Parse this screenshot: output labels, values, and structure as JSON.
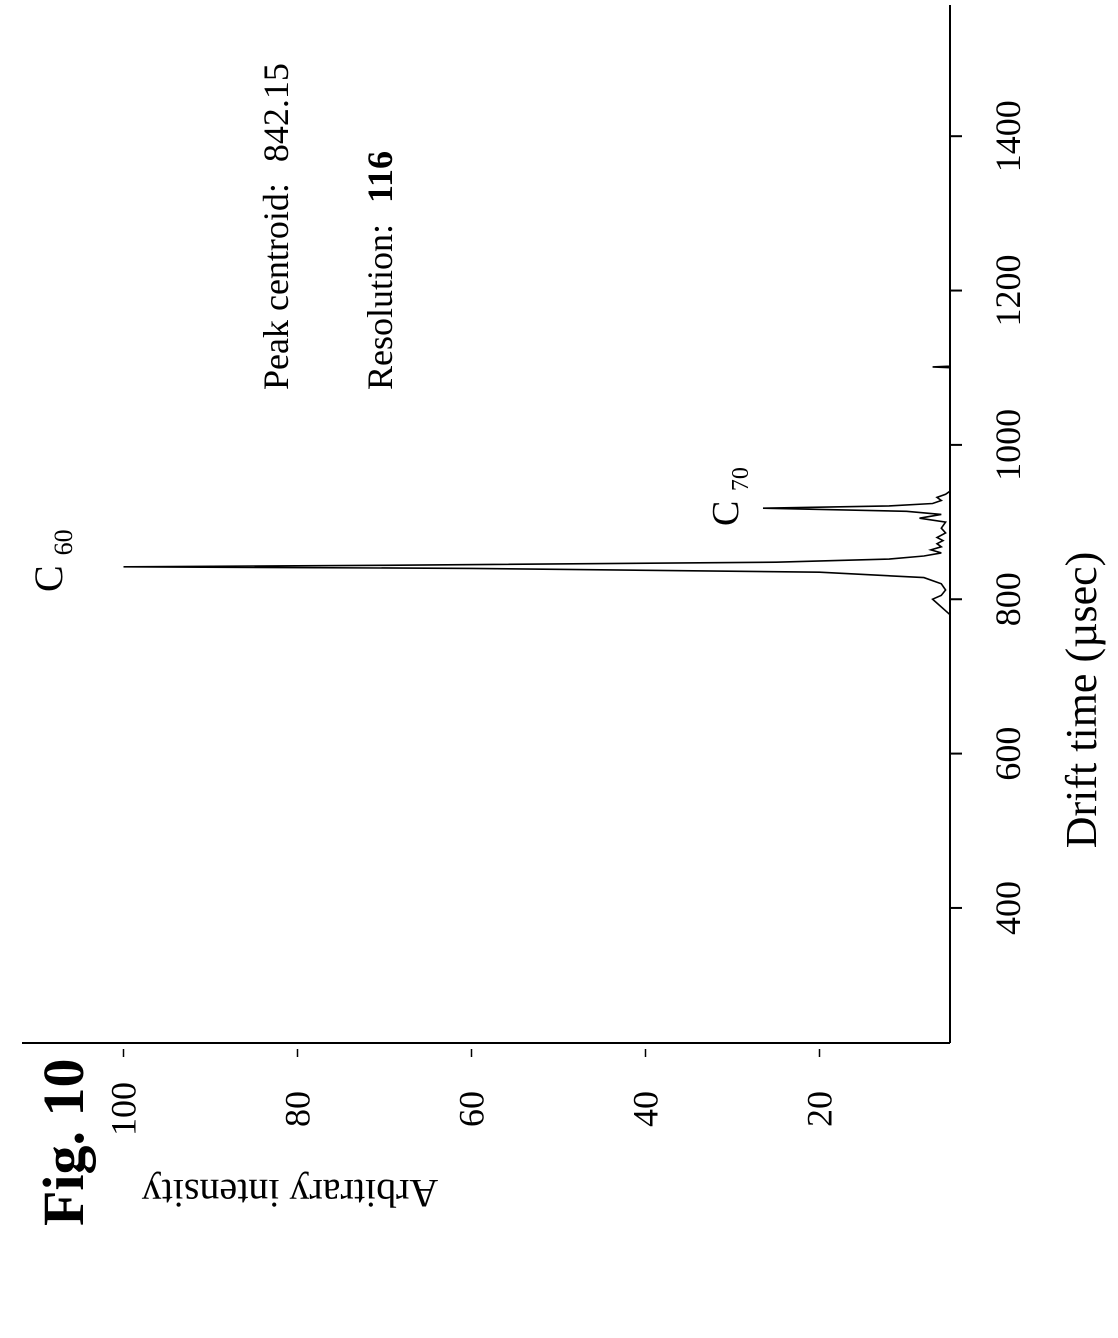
{
  "figure_label": "Fig. 10",
  "chart_data": {
    "type": "line",
    "orientation": "rotated 90° counter-clockwise (page in landscape)",
    "xlabel": "Drift time (µsec)",
    "ylabel": "Arbitrary intensity",
    "xlim": [
      225,
      1570
    ],
    "ylim": [
      5,
      105
    ],
    "x_ticks": [
      400,
      600,
      800,
      1000,
      1200,
      1400
    ],
    "y_ticks": [
      20,
      40,
      60,
      80,
      100
    ],
    "grid": false,
    "annotations": {
      "peak_centroid_label": "Peak centroid:",
      "peak_centroid_value": "842.15",
      "resolution_label": "Resolution:",
      "resolution_value": "116",
      "c60_base": "C",
      "c60_sub": "60",
      "c70_base": "C",
      "c70_sub": "70"
    },
    "series": [
      {
        "x": [
          225,
          300,
          400,
          500,
          600,
          700,
          780,
          795,
          800,
          805,
          812,
          820,
          828,
          835,
          840,
          842,
          844,
          848,
          852,
          856,
          860,
          864,
          868,
          872,
          876,
          880,
          886,
          892,
          900,
          905,
          910,
          914,
          918,
          921,
          924,
          928,
          932,
          936,
          940,
          1000,
          1080,
          1100,
          1101,
          1102,
          1150,
          1300,
          1450,
          1570
        ],
        "y": [
          5,
          5,
          5,
          5,
          5,
          5,
          5,
          6.5,
          7.0,
          6.0,
          5.5,
          6.0,
          8.0,
          20.0,
          60.0,
          100.0,
          70.0,
          25.0,
          12.0,
          8.0,
          6.0,
          7.2,
          6.0,
          6.5,
          5.8,
          6.5,
          5.5,
          6.0,
          5.5,
          8.5,
          6.0,
          10.0,
          26.5,
          12.0,
          7.0,
          6.0,
          6.5,
          5.5,
          5.0,
          5.0,
          5.0,
          5.0,
          7.0,
          5.0,
          5.0,
          5.0,
          5.0,
          5.0
        ]
      }
    ]
  }
}
